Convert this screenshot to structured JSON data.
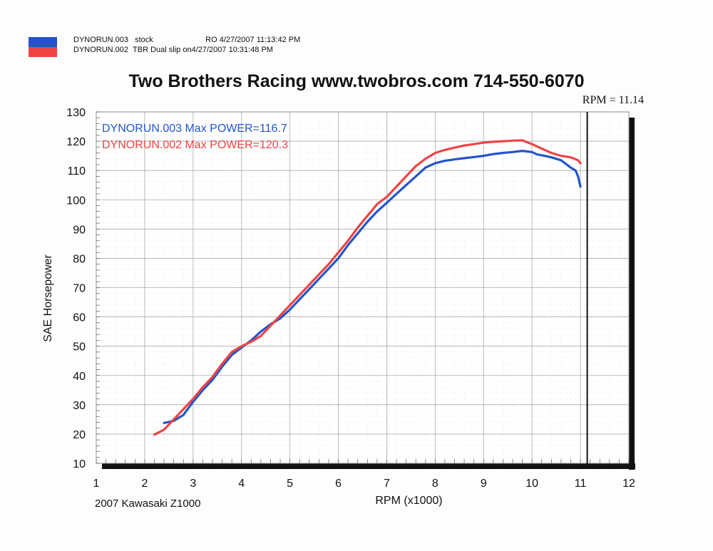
{
  "header": {
    "runs": [
      {
        "file": "DYNORUN.003",
        "desc": "stock",
        "extra": "RO  4/27/2007 11:13:42 PM",
        "color": "#2255cc"
      },
      {
        "file": "DYNORUN.002",
        "desc": "TBR Dual slip on",
        "extra": "4/27/2007 10:31:48 PM",
        "color": "#ee4444"
      }
    ]
  },
  "title": "Two Brothers Racing  www.twobros.com  714-550-6070",
  "rpm_readout": "RPM = 11.14",
  "caption": "2007 Kawasaki Z1000",
  "chart_data": {
    "type": "line",
    "xlabel": "RPM (x1000)",
    "ylabel": "SAE Horsepower",
    "xlim": [
      1,
      12
    ],
    "ylim": [
      10,
      130
    ],
    "xticks": [
      1,
      2,
      3,
      4,
      5,
      6,
      7,
      8,
      9,
      10,
      11,
      12
    ],
    "yticks": [
      10,
      20,
      30,
      40,
      50,
      60,
      70,
      80,
      90,
      100,
      110,
      120,
      130
    ],
    "grid": true,
    "cursor_x": 11.14,
    "annotations": [
      {
        "text": "DYNORUN.003  Max POWER=116.7",
        "color": "#2255cc"
      },
      {
        "text": "DYNORUN.002  Max POWER=120.3",
        "color": "#ee4444"
      }
    ],
    "series": [
      {
        "name": "DYNORUN.003",
        "color": "#2255cc",
        "x": [
          2.4,
          2.6,
          2.8,
          3.0,
          3.2,
          3.4,
          3.6,
          3.8,
          4.0,
          4.2,
          4.4,
          4.6,
          4.8,
          5.0,
          5.2,
          5.4,
          5.6,
          5.8,
          6.0,
          6.2,
          6.4,
          6.6,
          6.8,
          7.0,
          7.2,
          7.4,
          7.6,
          7.8,
          8.0,
          8.2,
          8.4,
          8.6,
          8.8,
          9.0,
          9.2,
          9.4,
          9.6,
          9.8,
          10.0,
          10.1,
          10.2,
          10.4,
          10.6,
          10.8,
          10.9,
          10.95,
          11.0
        ],
        "y": [
          23.8,
          24.5,
          26.5,
          31.0,
          35.0,
          38.5,
          43.0,
          47.0,
          49.5,
          52.0,
          55.0,
          57.5,
          59.5,
          62.5,
          66.0,
          69.5,
          73.0,
          76.5,
          80.0,
          84.5,
          88.5,
          92.5,
          96.0,
          99.0,
          102.0,
          105.0,
          108.0,
          111.0,
          112.5,
          113.3,
          113.8,
          114.2,
          114.6,
          115.0,
          115.6,
          116.0,
          116.3,
          116.7,
          116.3,
          115.5,
          115.2,
          114.5,
          113.5,
          111.0,
          110.0,
          108.0,
          104.5
        ]
      },
      {
        "name": "DYNORUN.002",
        "color": "#ee4444",
        "x": [
          2.2,
          2.4,
          2.6,
          2.8,
          3.0,
          3.2,
          3.4,
          3.6,
          3.8,
          4.0,
          4.2,
          4.4,
          4.6,
          4.8,
          5.0,
          5.2,
          5.4,
          5.6,
          5.8,
          6.0,
          6.2,
          6.4,
          6.6,
          6.8,
          7.0,
          7.2,
          7.4,
          7.6,
          7.8,
          8.0,
          8.2,
          8.4,
          8.6,
          8.8,
          9.0,
          9.2,
          9.4,
          9.6,
          9.8,
          10.0,
          10.2,
          10.4,
          10.6,
          10.8,
          10.95,
          11.0
        ],
        "y": [
          19.8,
          21.5,
          25.0,
          28.5,
          32.0,
          36.0,
          39.5,
          44.0,
          48.0,
          50.0,
          51.5,
          53.5,
          57.0,
          60.5,
          64.0,
          67.5,
          71.0,
          74.5,
          78.0,
          82.0,
          86.0,
          90.5,
          94.5,
          98.5,
          101.0,
          104.5,
          108.0,
          111.5,
          114.0,
          116.0,
          117.0,
          117.8,
          118.5,
          119.0,
          119.5,
          119.8,
          120.0,
          120.2,
          120.3,
          119.0,
          117.5,
          116.0,
          115.0,
          114.5,
          113.5,
          112.5
        ]
      }
    ]
  }
}
